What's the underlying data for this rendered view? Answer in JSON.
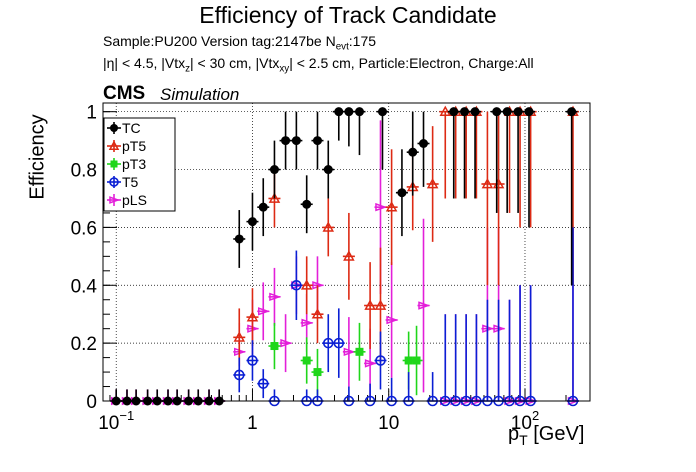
{
  "header": {
    "title": "Efficiency of Track Candidate",
    "sample_line": {
      "prefix": "Sample:PU200   Version tag:2147be  N",
      "sub": "evt",
      "suffix": ":175"
    },
    "cuts_line": {
      "p1": "|η| < 4.5, |Vtx",
      "s1": "z",
      "p2": "| < 30 cm, |Vtx",
      "s2": "xy",
      "p3": "| < 2.5 cm, Particle:Electron, Charge:All"
    },
    "cms": "CMS",
    "simulation": "Simulation"
  },
  "chart_data": {
    "type": "scatter",
    "title": "Efficiency of Track Candidate",
    "xlabel": "p_T [GeV]",
    "xlabel_main": "p",
    "xlabel_sub": "T",
    "xlabel_unit": " [GeV]",
    "ylabel": "Efficiency",
    "xscale": "log",
    "xlim": [
      0.08,
      300
    ],
    "ylim": [
      0,
      1.03
    ],
    "grid": true,
    "legend_position": "top-left",
    "x_ticks": [
      {
        "value": 0.1,
        "base": "10",
        "exp": "−1"
      },
      {
        "value": 1,
        "base": "1",
        "exp": ""
      },
      {
        "value": 10,
        "base": "10",
        "exp": ""
      },
      {
        "value": 100,
        "base": "10",
        "exp": "2"
      }
    ],
    "y_ticks": [
      {
        "value": 0,
        "label": "0"
      },
      {
        "value": 0.2,
        "label": "0.2"
      },
      {
        "value": 0.4,
        "label": "0.4"
      },
      {
        "value": 0.6,
        "label": "0.6"
      },
      {
        "value": 0.8,
        "label": "0.8"
      },
      {
        "value": 1,
        "label": "1"
      }
    ],
    "series": [
      {
        "name": "TC",
        "color": "#000000",
        "marker": "filled-circle",
        "points": [
          {
            "x": 0.1,
            "y": 0,
            "err": 0.04
          },
          {
            "x": 0.12,
            "y": 0,
            "err": 0.04
          },
          {
            "x": 0.14,
            "y": 0,
            "err": 0.04
          },
          {
            "x": 0.17,
            "y": 0,
            "err": 0.04
          },
          {
            "x": 0.2,
            "y": 0,
            "err": 0.04
          },
          {
            "x": 0.24,
            "y": 0,
            "err": 0.04
          },
          {
            "x": 0.28,
            "y": 0,
            "err": 0.04
          },
          {
            "x": 0.34,
            "y": 0,
            "err": 0.04
          },
          {
            "x": 0.4,
            "y": 0,
            "err": 0.04
          },
          {
            "x": 0.48,
            "y": 0,
            "err": 0.04
          },
          {
            "x": 0.57,
            "y": 0,
            "err": 0.04
          },
          {
            "x": 0.8,
            "y": 0.56,
            "err": 0.1
          },
          {
            "x": 1.0,
            "y": 0.62,
            "err": 0.1
          },
          {
            "x": 1.2,
            "y": 0.67,
            "err": 0.1
          },
          {
            "x": 1.45,
            "y": 0.8,
            "err": 0.1
          },
          {
            "x": 1.75,
            "y": 0.9,
            "err": 0.1
          },
          {
            "x": 2.1,
            "y": 0.9,
            "err": 0.1
          },
          {
            "x": 2.5,
            "y": 0.68,
            "err": 0.1
          },
          {
            "x": 3.0,
            "y": 0.9,
            "err": 0.1
          },
          {
            "x": 3.6,
            "y": 0.8,
            "err": 0.1
          },
          {
            "x": 4.3,
            "y": 1.0,
            "err": 0.1
          },
          {
            "x": 5.1,
            "y": 1.0,
            "err": 0.12
          },
          {
            "x": 6.1,
            "y": 1.0,
            "err": 0.15
          },
          {
            "x": 9,
            "y": 1.0,
            "err": 0.2
          },
          {
            "x": 12.5,
            "y": 0.72,
            "err": 0.15
          },
          {
            "x": 15,
            "y": 0.86,
            "err": 0.15
          },
          {
            "x": 18,
            "y": 0.89,
            "err": 0.15
          },
          {
            "x": 30,
            "y": 1.0,
            "err": 0.3
          },
          {
            "x": 36,
            "y": 1.0,
            "err": 0.3
          },
          {
            "x": 43,
            "y": 1.0,
            "err": 0.3
          },
          {
            "x": 62,
            "y": 1.0,
            "err": 0.35
          },
          {
            "x": 74,
            "y": 1.0,
            "err": 0.35
          },
          {
            "x": 89,
            "y": 1.0,
            "err": 0.35
          },
          {
            "x": 107,
            "y": 1.0,
            "err": 0.4
          },
          {
            "x": 220,
            "y": 1.0,
            "err": 0.6
          }
        ]
      },
      {
        "name": "pT5",
        "color": "#dd2a14",
        "marker": "open-triangle",
        "points": [
          {
            "x": 0.8,
            "y": 0.22,
            "err": 0.1
          },
          {
            "x": 1.0,
            "y": 0.29,
            "err": 0.1
          },
          {
            "x": 1.45,
            "y": 0.7,
            "err": 0.1
          },
          {
            "x": 2.5,
            "y": 0.4,
            "err": 0.1
          },
          {
            "x": 3.0,
            "y": 0.3,
            "err": 0.1
          },
          {
            "x": 3.6,
            "y": 0.6,
            "err": 0.1
          },
          {
            "x": 5.1,
            "y": 0.5,
            "err": 0.15
          },
          {
            "x": 7.3,
            "y": 0.33,
            "err": 0.15
          },
          {
            "x": 8.7,
            "y": 0.33,
            "err": 0.2
          },
          {
            "x": 10.5,
            "y": 0.67,
            "err": 0.2
          },
          {
            "x": 15,
            "y": 0.74,
            "err": 0.15
          },
          {
            "x": 21,
            "y": 0.75,
            "err": 0.2
          },
          {
            "x": 26,
            "y": 1.0,
            "err": 0.3
          },
          {
            "x": 31,
            "y": 1.0,
            "err": 0.3
          },
          {
            "x": 37,
            "y": 1.0,
            "err": 0.3
          },
          {
            "x": 44,
            "y": 1.0,
            "err": 0.3
          },
          {
            "x": 53,
            "y": 0.75,
            "err": 0.35
          },
          {
            "x": 64,
            "y": 0.75,
            "err": 0.35
          },
          {
            "x": 77,
            "y": 1.0,
            "err": 0.35
          },
          {
            "x": 92,
            "y": 1.0,
            "err": 0.4
          },
          {
            "x": 110,
            "y": 1.0,
            "err": 0.4
          },
          {
            "x": 225,
            "y": 1.0,
            "err": 0.6
          }
        ]
      },
      {
        "name": "pT3",
        "color": "#1fd61a",
        "marker": "filled-square",
        "points": [
          {
            "x": 1.45,
            "y": 0.19,
            "err": 0.08
          },
          {
            "x": 2.5,
            "y": 0.14,
            "err": 0.08
          },
          {
            "x": 3.0,
            "y": 0.1,
            "err": 0.08
          },
          {
            "x": 6.1,
            "y": 0.17,
            "err": 0.1
          },
          {
            "x": 14,
            "y": 0.14,
            "err": 0.1
          },
          {
            "x": 16,
            "y": 0.14,
            "err": 0.12
          }
        ]
      },
      {
        "name": "T5",
        "color": "#0a1fd4",
        "marker": "open-circle",
        "points": [
          {
            "x": 0.8,
            "y": 0.09,
            "err": 0.06
          },
          {
            "x": 1.0,
            "y": 0.14,
            "err": 0.07
          },
          {
            "x": 1.2,
            "y": 0.06,
            "err": 0.05
          },
          {
            "x": 1.45,
            "y": 0,
            "err": 0.04
          },
          {
            "x": 2.1,
            "y": 0.4,
            "err": 0.12
          },
          {
            "x": 2.5,
            "y": 0,
            "err": 0.04
          },
          {
            "x": 3.0,
            "y": 0,
            "err": 0.04
          },
          {
            "x": 3.6,
            "y": 0.2,
            "err": 0.1
          },
          {
            "x": 4.3,
            "y": 0.2,
            "err": 0.12
          },
          {
            "x": 5.1,
            "y": 0,
            "err": 0.05
          },
          {
            "x": 7.3,
            "y": 0,
            "err": 0.06
          },
          {
            "x": 8.7,
            "y": 0.14,
            "err": 0.1
          },
          {
            "x": 10.5,
            "y": 0,
            "err": 0.08
          },
          {
            "x": 14,
            "y": 0,
            "err": 0.1
          },
          {
            "x": 21,
            "y": 0,
            "err": 0.1
          },
          {
            "x": 26,
            "y": 0,
            "err": 0.3
          },
          {
            "x": 31,
            "y": 0,
            "err": 0.3
          },
          {
            "x": 37,
            "y": 0,
            "err": 0.3
          },
          {
            "x": 44,
            "y": 0,
            "err": 0.3
          },
          {
            "x": 53,
            "y": 0,
            "err": 0.35
          },
          {
            "x": 64,
            "y": 0,
            "err": 0.35
          },
          {
            "x": 77,
            "y": 0,
            "err": 0.35
          },
          {
            "x": 92,
            "y": 0,
            "err": 0.4
          },
          {
            "x": 110,
            "y": 0,
            "err": 0.4
          },
          {
            "x": 225,
            "y": 0,
            "err": 0.6
          }
        ]
      },
      {
        "name": "pLS",
        "color": "#e31fd9",
        "marker": "open-triangle-side",
        "points": [
          {
            "x": 0.1,
            "y": 0,
            "err": 0.04
          },
          {
            "x": 0.12,
            "y": 0,
            "err": 0.04
          },
          {
            "x": 0.14,
            "y": 0,
            "err": 0.04
          },
          {
            "x": 0.17,
            "y": 0,
            "err": 0.04
          },
          {
            "x": 0.2,
            "y": 0,
            "err": 0.04
          },
          {
            "x": 0.24,
            "y": 0,
            "err": 0.04
          },
          {
            "x": 0.28,
            "y": 0,
            "err": 0.04
          },
          {
            "x": 0.34,
            "y": 0,
            "err": 0.04
          },
          {
            "x": 0.4,
            "y": 0,
            "err": 0.04
          },
          {
            "x": 0.48,
            "y": 0,
            "err": 0.04
          },
          {
            "x": 0.57,
            "y": 0,
            "err": 0.04
          },
          {
            "x": 0.8,
            "y": 0.17,
            "err": 0.1
          },
          {
            "x": 1.0,
            "y": 0.25,
            "err": 0.1
          },
          {
            "x": 1.2,
            "y": 0.31,
            "err": 0.1
          },
          {
            "x": 1.45,
            "y": 0.36,
            "err": 0.1
          },
          {
            "x": 1.75,
            "y": 0.2,
            "err": 0.1
          },
          {
            "x": 2.1,
            "y": 0.4,
            "err": 0.1
          },
          {
            "x": 2.5,
            "y": 0.27,
            "err": 0.1
          },
          {
            "x": 3.0,
            "y": 0.4,
            "err": 0.1
          },
          {
            "x": 5.1,
            "y": 0.17,
            "err": 0.12
          },
          {
            "x": 7.3,
            "y": 0.13,
            "err": 0.12
          },
          {
            "x": 8.7,
            "y": 0.67,
            "err": 0.3
          },
          {
            "x": 10.5,
            "y": 0.28,
            "err": 0.2
          },
          {
            "x": 18,
            "y": 0.33,
            "err": 0.3
          },
          {
            "x": 26,
            "y": 0,
            "err": 0.3
          },
          {
            "x": 31,
            "y": 0,
            "err": 0.3
          },
          {
            "x": 37,
            "y": 0,
            "err": 0.3
          },
          {
            "x": 44,
            "y": 0,
            "err": 0.3
          },
          {
            "x": 53,
            "y": 0.25,
            "err": 0.35
          },
          {
            "x": 64,
            "y": 0.25,
            "err": 0.35
          },
          {
            "x": 77,
            "y": 0,
            "err": 0.35
          },
          {
            "x": 92,
            "y": 0,
            "err": 0.4
          },
          {
            "x": 110,
            "y": 0,
            "err": 0.4
          },
          {
            "x": 225,
            "y": 0,
            "err": 0.6
          }
        ]
      }
    ]
  }
}
